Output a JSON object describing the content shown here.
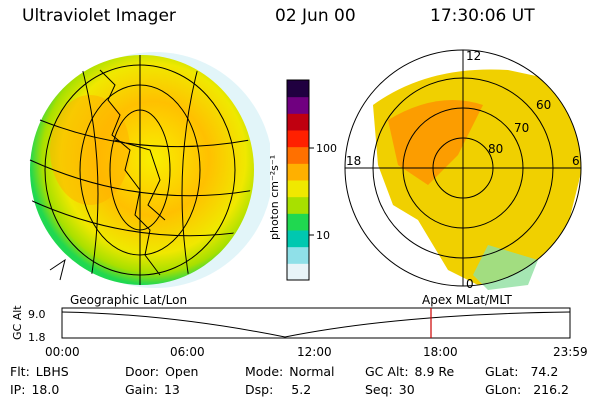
{
  "header": {
    "title": "Ultraviolet Imager",
    "date": "02 Jun 00",
    "time": "17:30:06 UT"
  },
  "colorbar": {
    "label": "photon cm⁻²s⁻¹",
    "ticks": [
      "100",
      "10"
    ],
    "colors": [
      "#e8f4f8",
      "#8fe0e8",
      "#00c8b0",
      "#20d850",
      "#a8e000",
      "#f0e800",
      "#ffb000",
      "#ff7000",
      "#ff2000",
      "#c00010",
      "#700080",
      "#200040"
    ]
  },
  "polar": {
    "mlt_labels": [
      "12",
      "18",
      "6",
      "0"
    ],
    "lat_labels": [
      "60",
      "70",
      "80"
    ]
  },
  "timeline": {
    "left_label": "Geographic Lat/Lon",
    "right_label": "Apex MLat/MLT",
    "y_axis_label": "GC Alt",
    "y_ticks": [
      "9.0",
      "1.8"
    ],
    "x_ticks": [
      "00:00",
      "06:00",
      "12:00",
      "18:00",
      "23:59"
    ],
    "marker_color": "#cc0000"
  },
  "info": {
    "flt_key": "Flt:",
    "flt_val": "LBHS",
    "ip_key": "IP:",
    "ip_val": "18.0",
    "door_key": "Door:",
    "door_val": "Open",
    "gain_key": "Gain:",
    "gain_val": "13",
    "mode_key": "Mode:",
    "mode_val": "Normal",
    "dsp_key": "Dsp:",
    "dsp_val": "5.2",
    "gcalt_key": "GC Alt:",
    "gcalt_val": "8.9 Re",
    "seq_key": "Seq:",
    "seq_val": "30",
    "glat_key": "GLat:",
    "glat_val": "74.2",
    "glon_key": "GLon:",
    "glon_val": "216.2"
  },
  "colors": {
    "aurora_low": "#f0e800",
    "aurora_mid": "#ffb000",
    "aurora_high": "#ff7000",
    "edge": "#20d850",
    "faint": "#8fe0e8"
  }
}
